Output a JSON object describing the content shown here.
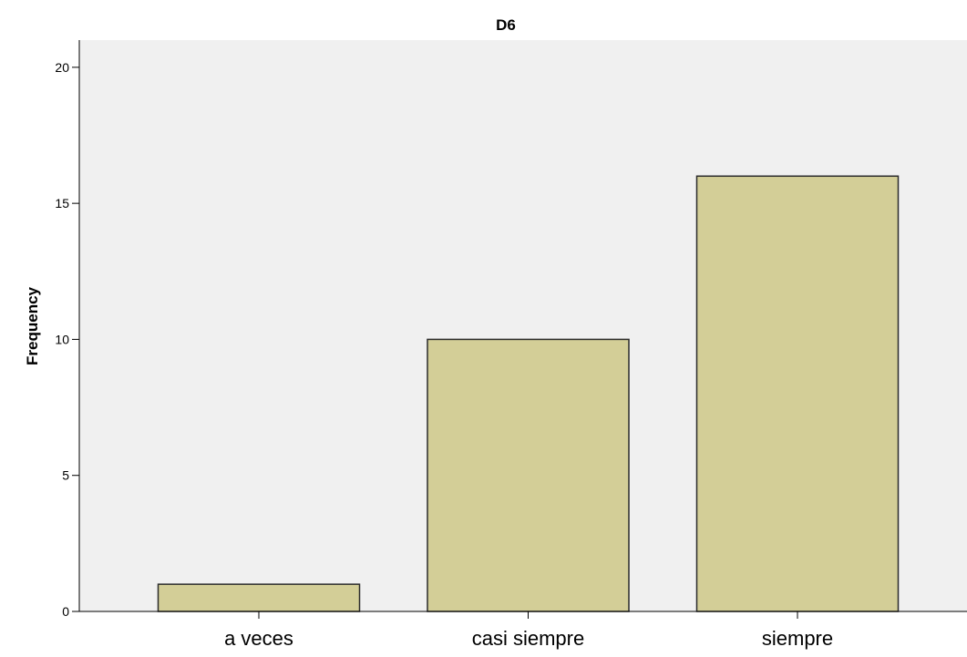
{
  "chart_data": {
    "type": "bar",
    "title": "D6",
    "xlabel": "",
    "ylabel": "Frequency",
    "categories": [
      "a veces",
      "casi siempre",
      "siempre"
    ],
    "values": [
      1,
      10,
      16
    ],
    "ylim": [
      0,
      21
    ],
    "yticks": [
      0,
      5,
      10,
      15,
      20
    ],
    "grid": false,
    "legend": "none",
    "colors": {
      "plot_background": "#F0F0F0",
      "bar_fill": "#D3CE97",
      "bar_stroke": "#2B2B2B",
      "axis": "#000000"
    }
  }
}
